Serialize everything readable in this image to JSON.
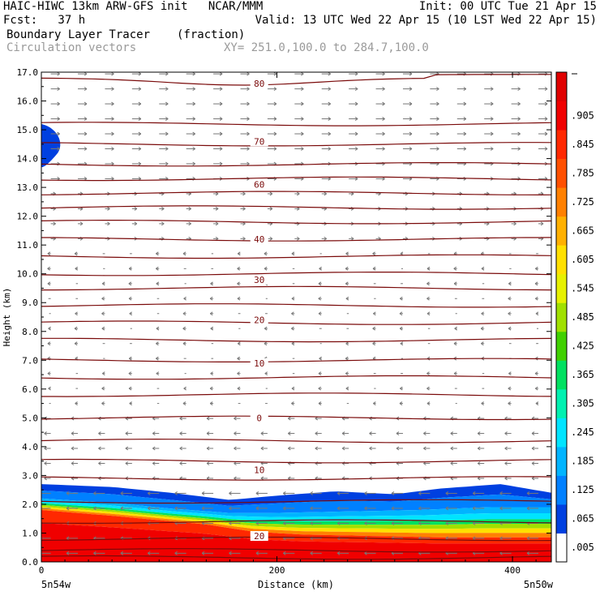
{
  "header": {
    "left_line1": "HAIC-HIWC 13km ARW-GFS init   NCAR/MMM",
    "right_line1": "Init: 00 UTC Tue 21 Apr 15",
    "left_line2": "Fcst:   37 h",
    "right_line2": "Valid: 13 UTC Wed 22 Apr 15 (10 LST Wed 22 Apr 15)",
    "field1_name": "Boundary Layer Tracer",
    "field1_units": "(fraction)",
    "field2_name": "Circulation vectors",
    "cross_section": "XY= 251.0,100.0 to 284.7,100.0"
  },
  "axes": {
    "xlabel": "Distance (km)",
    "ylabel": "Height (km)",
    "left_endpoint": "5n54w",
    "right_endpoint": "5n50w"
  },
  "chart_data": {
    "type": "heatmap",
    "x_ticks": [
      0,
      200,
      400
    ],
    "xlim": [
      0,
      433
    ],
    "y_ticks": [
      "0.0",
      "1.0",
      "2.0",
      "3.0",
      "4.0",
      "5.0",
      "6.0",
      "7.0",
      "8.0",
      "9.0",
      "10.0",
      "11.0",
      "12.0",
      "13.0",
      "14.0",
      "15.0",
      "16.0",
      "17.0"
    ],
    "ylim": [
      0,
      17
    ],
    "colorbar": {
      "labels": [
        ".005",
        ".065",
        ".125",
        ".185",
        ".245",
        ".305",
        ".365",
        ".425",
        ".485",
        ".545",
        ".605",
        ".665",
        ".725",
        ".785",
        ".845",
        ".905"
      ],
      "colors": [
        "#ffffff",
        "#0040e0",
        "#0080ff",
        "#00b4ff",
        "#00e4ff",
        "#00f0b0",
        "#00e060",
        "#40d000",
        "#a0e000",
        "#e6f000",
        "#ffe000",
        "#ffb000",
        "#ff8000",
        "#ff5000",
        "#ff2800",
        "#f00000",
        "#e00000"
      ]
    },
    "isotherms": [
      {
        "label": "80",
        "y_km": 16.6
      },
      {
        "label": "70",
        "y_km": 14.6
      },
      {
        "label": "60",
        "y_km": 13.1
      },
      {
        "label": "40",
        "y_km": 11.2
      },
      {
        "label": "30",
        "y_km": 9.8
      },
      {
        "label": "20",
        "y_km": 8.4
      },
      {
        "label": "10",
        "y_km": 6.9
      },
      {
        "label": "0",
        "y_km": 5.0
      },
      {
        "label": "10",
        "y_km": 3.2
      },
      {
        "label": "20",
        "y_km": 0.9
      }
    ],
    "isotherm_levels_km": [
      16.8,
      15.2,
      14.5,
      13.8,
      13.3,
      12.8,
      12.3,
      11.8,
      11.2,
      10.6,
      10.0,
      9.5,
      8.9,
      8.3,
      7.7,
      7.0,
      6.4,
      5.8,
      5.0,
      4.2,
      3.5,
      2.9,
      2.1,
      1.4,
      0.8,
      0.4,
      0.15
    ],
    "tracer_top_km": [
      [
        0,
        2.7
      ],
      [
        60,
        2.6
      ],
      [
        110,
        2.4
      ],
      [
        160,
        2.15
      ],
      [
        200,
        2.3
      ],
      [
        250,
        2.45
      ],
      [
        300,
        2.35
      ],
      [
        340,
        2.55
      ],
      [
        390,
        2.7
      ],
      [
        433,
        2.4
      ]
    ],
    "tracer_mid_km": [
      [
        0,
        2.2
      ],
      [
        60,
        2.05
      ],
      [
        110,
        1.85
      ],
      [
        160,
        1.7
      ],
      [
        200,
        1.7
      ],
      [
        260,
        1.75
      ],
      [
        320,
        1.8
      ],
      [
        380,
        1.9
      ],
      [
        433,
        1.9
      ]
    ],
    "tracer_high_km": [
      [
        0,
        1.8
      ],
      [
        60,
        1.6
      ],
      [
        100,
        1.45
      ],
      [
        140,
        1.3
      ],
      [
        180,
        1.05
      ],
      [
        220,
        0.95
      ],
      [
        280,
        0.9
      ],
      [
        340,
        0.85
      ],
      [
        433,
        0.85
      ]
    ]
  }
}
